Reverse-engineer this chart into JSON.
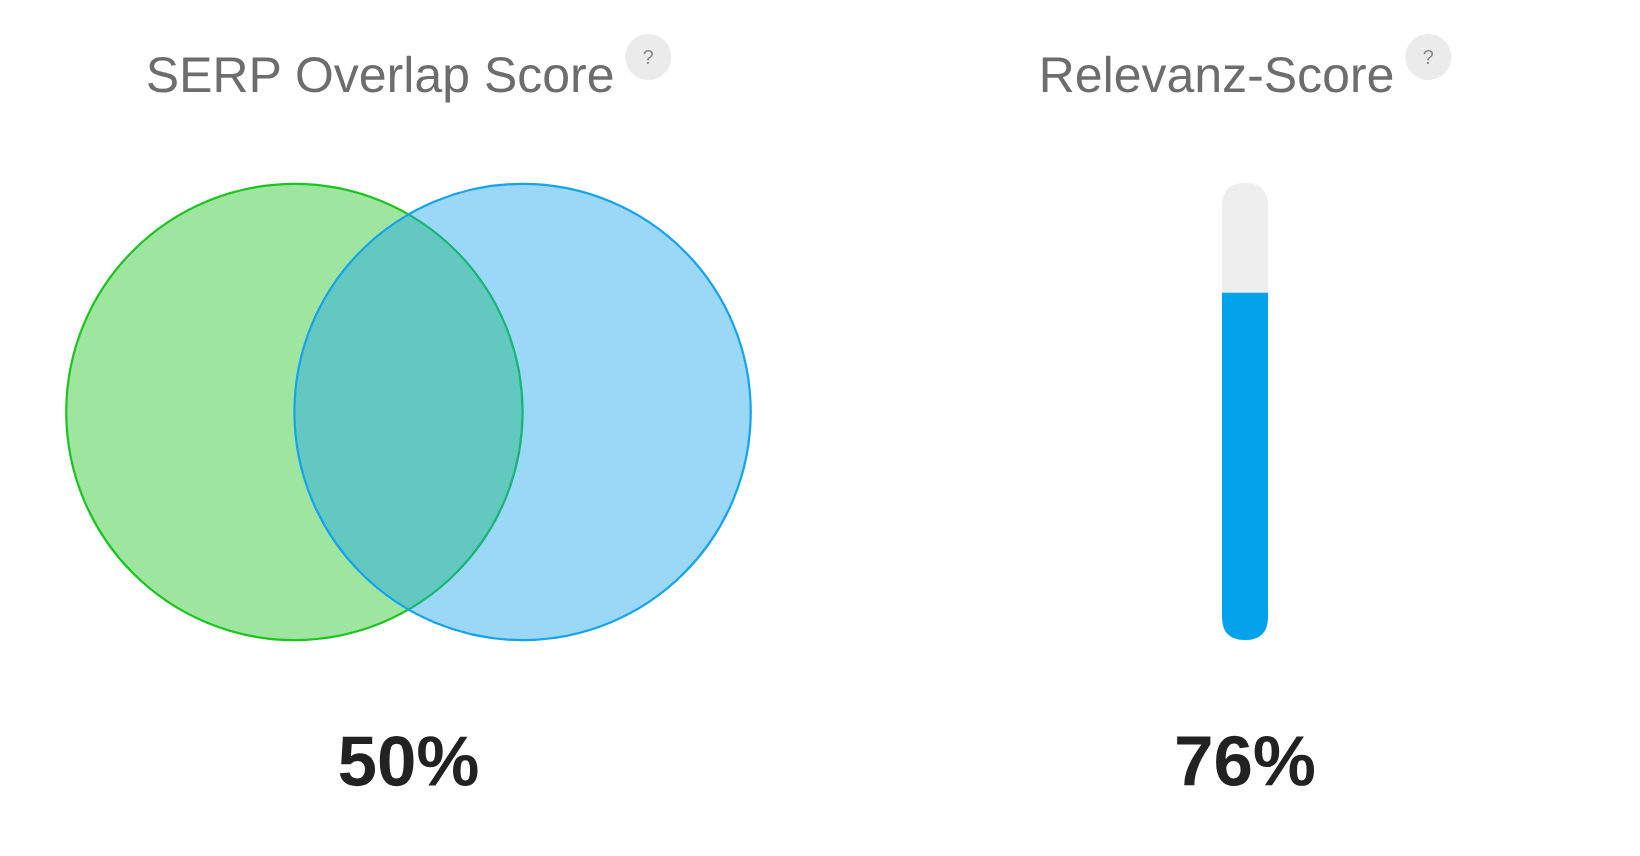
{
  "chart_data": [
    {
      "type": "other",
      "title": "SERP Overlap Score",
      "values": [
        50
      ],
      "value_labels": [
        "50%"
      ]
    },
    {
      "type": "bar",
      "title": "Relevanz-Score",
      "categories": [
        null
      ],
      "values": [
        76
      ],
      "value_labels": [
        "76%"
      ],
      "color": "#02a3ea",
      "ylim": [
        0,
        100
      ]
    }
  ]
}
